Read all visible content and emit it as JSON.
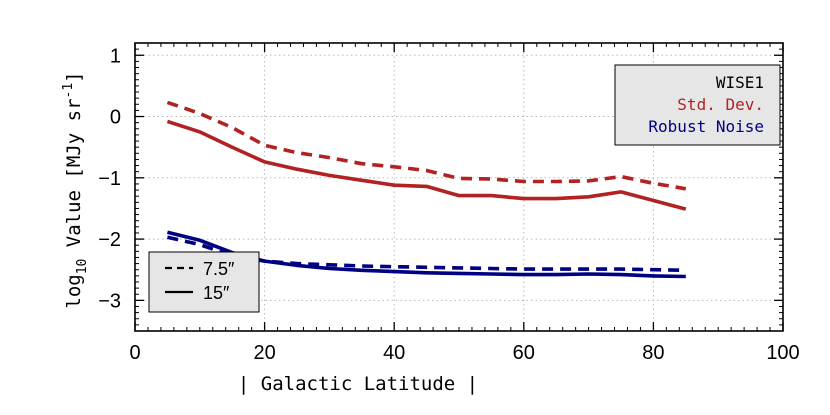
{
  "chart_data": {
    "type": "line",
    "xlabel": "| Galactic Latitude |",
    "ylabel_prefix": "log",
    "ylabel_sub": "10",
    "ylabel_main": " Value [MJy sr",
    "ylabel_sup": "-1",
    "ylabel_end": "]",
    "xlim": [
      0,
      100
    ],
    "ylim": [
      -3.5,
      1.2
    ],
    "xticks": [
      0,
      20,
      40,
      60,
      80,
      100
    ],
    "xtick_labels": [
      "0",
      "20",
      "40",
      "60",
      "80",
      "100"
    ],
    "yticks": [
      1,
      0,
      -1,
      -2,
      -3
    ],
    "ytick_labels": [
      "1",
      "0",
      "−1",
      "−2",
      "−3"
    ],
    "grid": true,
    "legend_band": {
      "title": "WISE1",
      "entries": [
        {
          "label": "Std. Dev.",
          "color": "#b22222"
        },
        {
          "label": "Robust Noise",
          "color": "#000080"
        }
      ],
      "placement": "top-right"
    },
    "legend_resolution": {
      "entries": [
        {
          "label": "7.5″",
          "style": "dashed"
        },
        {
          "label": "15″",
          "style": "solid"
        }
      ],
      "placement": "bottom-left"
    },
    "series": [
      {
        "band": "Std. Dev.",
        "resolution": "7.5″",
        "color": "#b22222",
        "style": "dashed",
        "x": [
          5,
          10,
          15,
          20,
          25,
          30,
          35,
          40,
          45,
          50,
          55,
          60,
          65,
          70,
          75,
          80,
          85
        ],
        "y": [
          0.23,
          0.05,
          -0.18,
          -0.47,
          -0.59,
          -0.67,
          -0.77,
          -0.82,
          -0.88,
          -1.01,
          -1.02,
          -1.06,
          -1.06,
          -1.05,
          -0.98,
          -1.09,
          -1.18
        ]
      },
      {
        "band": "Std. Dev.",
        "resolution": "15″",
        "color": "#b22222",
        "style": "solid",
        "x": [
          5,
          10,
          15,
          20,
          25,
          30,
          35,
          40,
          45,
          50,
          55,
          60,
          65,
          70,
          75,
          80,
          85
        ],
        "y": [
          -0.08,
          -0.25,
          -0.5,
          -0.74,
          -0.86,
          -0.96,
          -1.04,
          -1.12,
          -1.14,
          -1.29,
          -1.29,
          -1.34,
          -1.34,
          -1.31,
          -1.23,
          -1.37,
          -1.51
        ]
      },
      {
        "band": "Robust Noise",
        "resolution": "7.5″",
        "color": "#000080",
        "style": "dashed",
        "x": [
          5,
          10,
          15,
          20,
          25,
          30,
          35,
          40,
          45,
          50,
          55,
          60,
          65,
          70,
          75,
          80,
          85
        ],
        "y": [
          -1.97,
          -2.09,
          -2.27,
          -2.36,
          -2.4,
          -2.42,
          -2.44,
          -2.45,
          -2.46,
          -2.47,
          -2.48,
          -2.49,
          -2.49,
          -2.49,
          -2.49,
          -2.5,
          -2.51
        ]
      },
      {
        "band": "Robust Noise",
        "resolution": "15″",
        "color": "#000080",
        "style": "solid",
        "x": [
          5,
          10,
          15,
          20,
          25,
          30,
          35,
          40,
          45,
          50,
          55,
          60,
          65,
          70,
          75,
          80,
          85
        ],
        "y": [
          -1.89,
          -2.02,
          -2.22,
          -2.36,
          -2.43,
          -2.48,
          -2.51,
          -2.53,
          -2.55,
          -2.56,
          -2.57,
          -2.58,
          -2.58,
          -2.57,
          -2.58,
          -2.6,
          -2.61
        ]
      }
    ]
  }
}
